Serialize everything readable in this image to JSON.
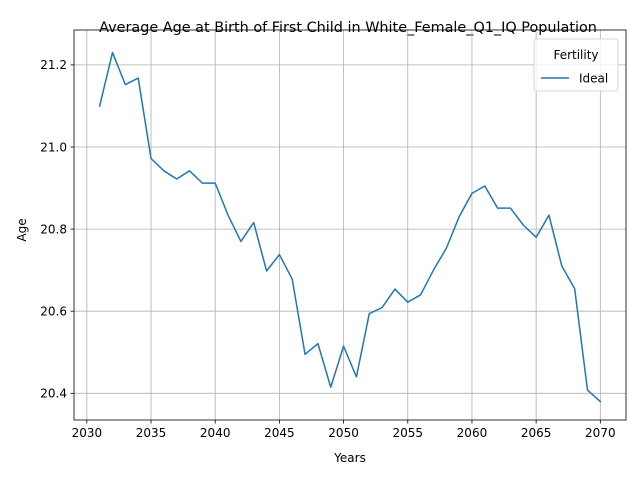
{
  "chart_data": {
    "type": "line",
    "title": "Average Age at Birth of First Child in White_Female_Q1_IQ Population",
    "xlabel": "Years",
    "ylabel": "Age",
    "xlim": [
      2029,
      2072
    ],
    "ylim": [
      20.335,
      21.285
    ],
    "xticks": [
      2030,
      2035,
      2040,
      2045,
      2050,
      2055,
      2060,
      2065,
      2070
    ],
    "yticks": [
      20.4,
      20.6,
      20.8,
      21.0,
      21.2
    ],
    "grid": true,
    "legend": {
      "title": "Fertility",
      "placement": "top-right"
    },
    "line_color": "#1f77b4",
    "series": [
      {
        "name": "Ideal",
        "x": [
          2031,
          2032,
          2033,
          2034,
          2035,
          2036,
          2037,
          2038,
          2039,
          2040,
          2041,
          2042,
          2043,
          2044,
          2045,
          2046,
          2047,
          2048,
          2049,
          2050,
          2051,
          2052,
          2053,
          2054,
          2055,
          2056,
          2057,
          2058,
          2059,
          2060,
          2061,
          2062,
          2063,
          2064,
          2065,
          2066,
          2067,
          2068,
          2069,
          2070
        ],
        "values": [
          21.1,
          21.23,
          21.152,
          21.168,
          20.972,
          20.942,
          20.922,
          20.942,
          20.912,
          20.912,
          20.834,
          20.77,
          20.816,
          20.698,
          20.738,
          20.678,
          20.495,
          20.521,
          20.415,
          20.515,
          20.44,
          20.594,
          20.609,
          20.654,
          20.622,
          20.64,
          20.7,
          20.753,
          20.83,
          20.887,
          20.905,
          20.851,
          20.851,
          20.81,
          20.78,
          20.834,
          20.71,
          20.655,
          20.408,
          20.38
        ]
      }
    ]
  }
}
